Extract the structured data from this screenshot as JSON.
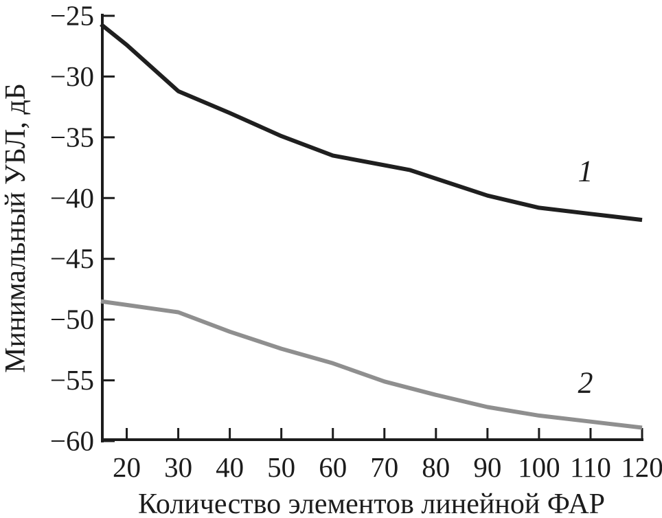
{
  "figure": {
    "background": "#ffffff"
  },
  "chart_data": {
    "type": "line",
    "title": "",
    "xlabel": "Количество элементов линейной ФАР",
    "ylabel": "Минимальный УБЛ, дБ",
    "xlim": [
      15,
      120
    ],
    "ylim": [
      -60,
      -25
    ],
    "xticks": [
      20,
      30,
      40,
      50,
      60,
      70,
      80,
      90,
      100,
      110,
      120
    ],
    "yticks": [
      -25,
      -30,
      -35,
      -40,
      -45,
      -50,
      -55,
      -60
    ],
    "grid": false,
    "legend_position": "inline-curve-labels",
    "axis_color": "#1c1c1c",
    "series": [
      {
        "name": "1",
        "label": "1",
        "color": "#1f1f1f",
        "stroke_width": 6,
        "x": [
          15,
          20,
          30,
          40,
          50,
          60,
          70,
          75,
          80,
          90,
          100,
          110,
          120
        ],
        "y": [
          -25.7,
          -27.4,
          -31.2,
          -33.0,
          -34.9,
          -36.5,
          -37.3,
          -37.7,
          -38.4,
          -39.8,
          -40.8,
          -41.3,
          -41.8
        ],
        "label_x": 109,
        "label_y": -38.6
      },
      {
        "name": "2",
        "label": "2",
        "color": "#8f8f8f",
        "stroke_width": 6,
        "x": [
          15,
          20,
          30,
          40,
          50,
          60,
          70,
          80,
          90,
          100,
          110,
          120
        ],
        "y": [
          -48.5,
          -48.8,
          -49.4,
          -51.0,
          -52.4,
          -53.6,
          -55.1,
          -56.2,
          -57.2,
          -57.9,
          -58.4,
          -58.9
        ],
        "label_x": 109,
        "label_y": -56.0
      }
    ]
  }
}
